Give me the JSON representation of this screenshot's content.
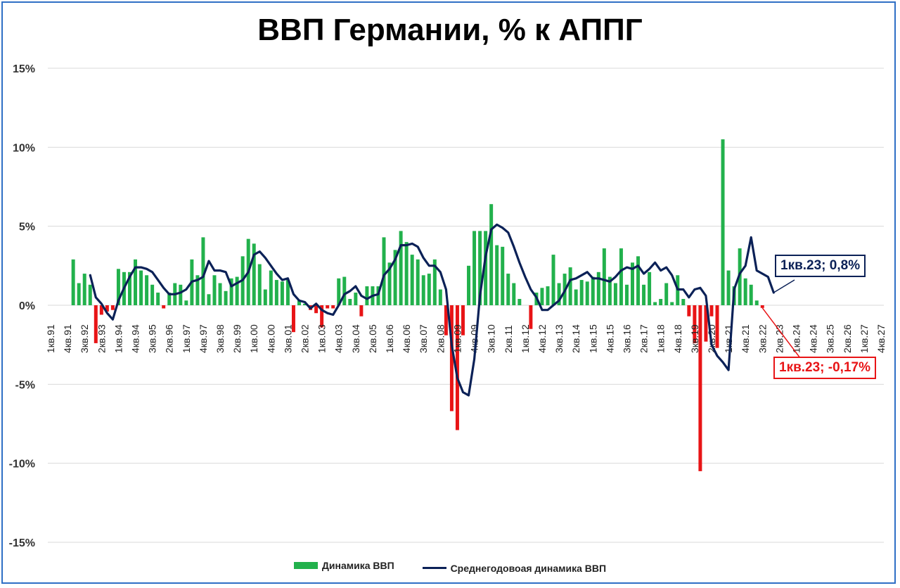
{
  "title": "ВВП Германии, % к АППГ",
  "chart_data": {
    "type": "bar+line",
    "title": "ВВП Германии, % к АППГ",
    "y_unit": "%",
    "ylim": [
      -15,
      15
    ],
    "yticks": [
      "15%",
      "10%",
      "5%",
      "0%",
      "-5%",
      "-10%",
      "-15%"
    ],
    "ytick_values": [
      15,
      10,
      5,
      0,
      -5,
      -10,
      -15
    ],
    "grid": true,
    "legend_position": "bottom",
    "x_tick_labels": [
      "1кв.91",
      "4кв.91",
      "3кв.92",
      "2кв.93",
      "1кв.94",
      "4кв.94",
      "3кв.95",
      "2кв.96",
      "1кв.97",
      "4кв.97",
      "3кв.98",
      "2кв.99",
      "1кв.00",
      "4кв.00",
      "3кв.01",
      "2кв.02",
      "1кв.03",
      "4кв.03",
      "3кв.04",
      "2кв.05",
      "1кв.06",
      "4кв.06",
      "3кв.07",
      "2кв.08",
      "1кв.09",
      "4кв.09",
      "3кв.10",
      "2кв.11",
      "1кв.12",
      "4кв.12",
      "3кв.13",
      "2кв.14",
      "1кв.15",
      "4кв.15",
      "3кв.16",
      "2кв.17",
      "1кв.18",
      "4кв.18",
      "3кв.19",
      "2кв.20",
      "1кв.21",
      "4кв.21",
      "3кв.22",
      "2кв.23",
      "1кв.24",
      "4кв.24",
      "3кв.25",
      "2кв.26",
      "1кв.27",
      "4кв.27"
    ],
    "series": [
      {
        "name": "Динамика ВВП",
        "kind": "bar",
        "start_period": "1кв.91",
        "color_positive": "#22b14c",
        "color_negative": "#e81416",
        "values": [
          null,
          null,
          null,
          null,
          2.9,
          1.4,
          2.0,
          1.3,
          -2.4,
          -0.6,
          -0.4,
          -0.3,
          2.3,
          2.1,
          2.1,
          2.9,
          2.2,
          1.9,
          1.3,
          0.8,
          -0.2,
          0.8,
          1.4,
          1.3,
          0.3,
          2.9,
          1.9,
          4.3,
          0.7,
          1.9,
          1.4,
          0.9,
          1.7,
          1.8,
          3.1,
          4.2,
          3.9,
          2.6,
          1.0,
          2.2,
          1.6,
          1.5,
          1.6,
          -1.7,
          0.3,
          0.1,
          -0.3,
          -0.5,
          -1.4,
          -0.2,
          -0.2,
          1.7,
          1.8,
          0.4,
          0.8,
          -0.7,
          1.2,
          1.2,
          1.2,
          4.3,
          2.7,
          3.5,
          4.7,
          4.0,
          3.2,
          2.9,
          1.9,
          2.0,
          2.9,
          1.0,
          -1.9,
          -6.7,
          -7.9,
          -1.9,
          2.5,
          4.7,
          4.7,
          4.7,
          6.4,
          3.8,
          3.7,
          2.0,
          1.4,
          0.4,
          0.0,
          -1.5,
          0.8,
          1.1,
          1.2,
          3.2,
          1.4,
          2.0,
          2.4,
          1.0,
          1.6,
          1.5,
          1.8,
          2.1,
          3.6,
          1.8,
          1.4,
          3.6,
          1.3,
          2.7,
          3.1,
          1.3,
          2.1,
          0.2,
          0.4,
          1.4,
          0.2,
          1.9,
          0.4,
          -0.7,
          -2.4,
          -10.5,
          -2.3,
          -0.7,
          -2.7,
          10.5,
          2.2,
          1.2,
          3.6,
          1.7,
          1.3,
          0.3,
          -0.17
        ]
      },
      {
        "name": "Среднегодовоая динамика ВВП",
        "kind": "line",
        "start_period": "1кв.91",
        "color": "#0b2157",
        "values": [
          null,
          null,
          null,
          null,
          null,
          null,
          null,
          1.9,
          0.5,
          0.1,
          -0.5,
          -0.9,
          0.3,
          1.1,
          1.8,
          2.4,
          2.4,
          2.3,
          2.1,
          1.6,
          1.1,
          0.7,
          0.7,
          0.8,
          1.0,
          1.5,
          1.6,
          1.8,
          2.8,
          2.2,
          2.2,
          2.1,
          1.2,
          1.4,
          1.6,
          2.1,
          3.2,
          3.4,
          3.0,
          2.5,
          2.0,
          1.6,
          1.7,
          0.7,
          0.3,
          0.2,
          -0.2,
          0.1,
          -0.3,
          -0.5,
          -0.6,
          0.0,
          0.7,
          0.9,
          1.2,
          0.6,
          0.4,
          0.6,
          0.7,
          1.9,
          2.3,
          2.9,
          3.8,
          3.8,
          3.9,
          3.7,
          3.0,
          2.5,
          2.5,
          2.1,
          1.0,
          -2.5,
          -4.6,
          -5.5,
          -5.7,
          -3.4,
          0.6,
          3.1,
          4.8,
          5.1,
          4.9,
          4.6,
          3.7,
          2.7,
          1.8,
          1.0,
          0.5,
          -0.3,
          -0.3,
          0.0,
          0.3,
          0.9,
          1.6,
          1.7,
          1.9,
          2.1,
          1.7,
          1.7,
          1.6,
          1.5,
          1.8,
          2.2,
          2.4,
          2.3,
          2.5,
          2.0,
          2.3,
          2.7,
          2.2,
          2.4,
          1.9,
          1.0,
          1.0,
          0.5,
          1.0,
          1.1,
          0.6,
          -2.5,
          -3.2,
          -3.6,
          -4.1,
          1.0,
          2.0,
          2.5,
          4.3,
          2.2,
          2.0,
          1.8,
          0.8
        ]
      }
    ],
    "annotations": [
      {
        "text": "1кв.23; 0,8%",
        "series": "Среднегодовоая динамика ВВП",
        "period": "1кв.23",
        "value": 0.8
      },
      {
        "text": "1кв.23; -0,17%",
        "series": "Динамика ВВП",
        "period": "1кв.23",
        "value": -0.17
      }
    ]
  }
}
